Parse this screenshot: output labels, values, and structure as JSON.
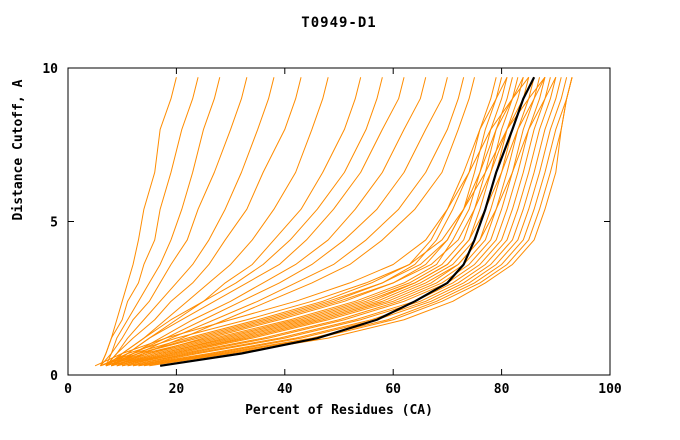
{
  "title": "T0949-D1",
  "axes": {
    "x_label": "Percent of Residues (CA)",
    "y_label": "Distance Cutoff, A",
    "x_ticks": [
      0,
      20,
      40,
      60,
      80,
      100
    ],
    "y_ticks": [
      0,
      5,
      10
    ],
    "x_range": [
      0,
      100
    ],
    "y_range": [
      0,
      10
    ]
  },
  "colors": {
    "model": "#FF8C00",
    "reference": "#000000",
    "frame": "#000000",
    "background": "#FFFFFF"
  },
  "chart_data": {
    "type": "line",
    "title": "T0949-D1",
    "xlabel": "Percent of Residues (CA)",
    "ylabel": "Distance Cutoff, A",
    "xlim": [
      0,
      100
    ],
    "ylim": [
      0,
      10
    ],
    "grid": false,
    "legend": false,
    "description": "Ensemble of orange model curves (percent of CA residues under each distance cutoff) with one thick black reference curve.",
    "y_grid": [
      0.3,
      0.7,
      1.2,
      1.8,
      2.4,
      3.0,
      3.6,
      4.4,
      5.4,
      6.6,
      8.0,
      9.0,
      9.7
    ],
    "model_series_x": [
      [
        6,
        7,
        8,
        9,
        10,
        11,
        12,
        13,
        14,
        16,
        17,
        19,
        20
      ],
      [
        6,
        7,
        8,
        10,
        11,
        13,
        14,
        16,
        17,
        19,
        21,
        23,
        24
      ],
      [
        6,
        8,
        9,
        11,
        13,
        15,
        17,
        19,
        21,
        23,
        25,
        27,
        28
      ],
      [
        7,
        8,
        10,
        12,
        15,
        17,
        19,
        22,
        24,
        27,
        30,
        32,
        33
      ],
      [
        7,
        9,
        11,
        14,
        17,
        20,
        23,
        26,
        29,
        32,
        35,
        37,
        38
      ],
      [
        7,
        9,
        12,
        16,
        19,
        23,
        26,
        29,
        33,
        36,
        40,
        42,
        43
      ],
      [
        8,
        10,
        14,
        18,
        22,
        26,
        30,
        34,
        38,
        42,
        45,
        47,
        48
      ],
      [
        8,
        11,
        15,
        20,
        25,
        29,
        34,
        38,
        43,
        47,
        51,
        53,
        54
      ],
      [
        7,
        10,
        14,
        19,
        25,
        31,
        36,
        41,
        46,
        51,
        55,
        57,
        58
      ],
      [
        7,
        11,
        15,
        21,
        27,
        33,
        39,
        44,
        49,
        54,
        58,
        61,
        62
      ],
      [
        8,
        12,
        17,
        23,
        30,
        36,
        42,
        48,
        53,
        58,
        62,
        65,
        66
      ],
      [
        8,
        12,
        18,
        25,
        32,
        39,
        45,
        51,
        57,
        62,
        66,
        69,
        70
      ],
      [
        8,
        13,
        19,
        27,
        35,
        42,
        49,
        55,
        61,
        66,
        70,
        72,
        73
      ],
      [
        9,
        14,
        21,
        29,
        37,
        45,
        52,
        58,
        64,
        69,
        72,
        74,
        75
      ],
      [
        6,
        13,
        24,
        37,
        49,
        58,
        64,
        68,
        71,
        74,
        76,
        78,
        79
      ],
      [
        7,
        14,
        26,
        39,
        51,
        60,
        66,
        70,
        73,
        75,
        77,
        79,
        80
      ],
      [
        7,
        15,
        27,
        41,
        53,
        62,
        68,
        71,
        74,
        76,
        78,
        80,
        81
      ],
      [
        8,
        16,
        28,
        42,
        54,
        63,
        69,
        73,
        75,
        77,
        79,
        81,
        82
      ],
      [
        8,
        17,
        30,
        44,
        56,
        64,
        70,
        74,
        76,
        78,
        80,
        82,
        83
      ],
      [
        9,
        18,
        31,
        45,
        57,
        65,
        71,
        75,
        77,
        79,
        81,
        83,
        84
      ],
      [
        9,
        19,
        33,
        47,
        59,
        67,
        72,
        76,
        78,
        80,
        82,
        84,
        85
      ],
      [
        10,
        20,
        34,
        48,
        60,
        68,
        73,
        77,
        79,
        81,
        83,
        85,
        86
      ],
      [
        10,
        21,
        36,
        50,
        61,
        69,
        74,
        78,
        80,
        82,
        84,
        86,
        87
      ],
      [
        11,
        22,
        37,
        51,
        62,
        70,
        75,
        79,
        81,
        83,
        85,
        87,
        88
      ],
      [
        11,
        23,
        39,
        53,
        64,
        71,
        76,
        80,
        82,
        84,
        86,
        88,
        89
      ],
      [
        12,
        24,
        40,
        54,
        65,
        72,
        77,
        81,
        83,
        85,
        87,
        89,
        90
      ],
      [
        12,
        26,
        42,
        56,
        66,
        73,
        78,
        82,
        84,
        86,
        88,
        90,
        91
      ],
      [
        13,
        27,
        43,
        57,
        67,
        74,
        79,
        83,
        85,
        87,
        89,
        91,
        92
      ],
      [
        13,
        28,
        45,
        59,
        68,
        75,
        80,
        84,
        86,
        88,
        90,
        92,
        93
      ],
      [
        6,
        12,
        22,
        35,
        47,
        56,
        63,
        67,
        70,
        73,
        76,
        79,
        81
      ],
      [
        7,
        13,
        23,
        36,
        48,
        58,
        65,
        70,
        73,
        76,
        79,
        82,
        84
      ],
      [
        8,
        15,
        25,
        38,
        50,
        60,
        67,
        72,
        75,
        78,
        81,
        84,
        86
      ],
      [
        9,
        17,
        29,
        43,
        55,
        64,
        70,
        74,
        77,
        80,
        83,
        86,
        88
      ],
      [
        10,
        19,
        32,
        46,
        58,
        66,
        72,
        76,
        79,
        82,
        85,
        88,
        90
      ],
      [
        5,
        10,
        18,
        30,
        42,
        52,
        60,
        66,
        70,
        74,
        78,
        82,
        85
      ],
      [
        6,
        11,
        20,
        33,
        45,
        55,
        63,
        69,
        73,
        77,
        81,
        85,
        88
      ],
      [
        14,
        29,
        46,
        60,
        69,
        76,
        81,
        85,
        87,
        89,
        91,
        92,
        93
      ],
      [
        15,
        30,
        48,
        62,
        71,
        77,
        82,
        86,
        88,
        90,
        91,
        92,
        93
      ]
    ],
    "reference_series_x": [
      17,
      32,
      46,
      57,
      64,
      70,
      73,
      75,
      77,
      79,
      82,
      84,
      86
    ]
  }
}
